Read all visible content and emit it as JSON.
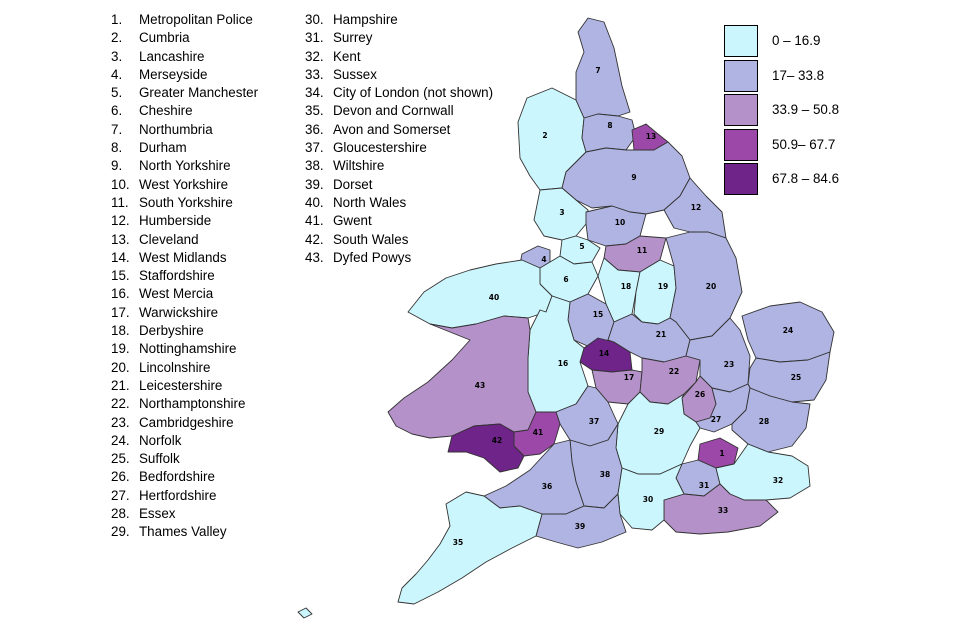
{
  "forces": [
    {
      "num": "1.",
      "name": "Metropolitan Police"
    },
    {
      "num": "2.",
      "name": "Cumbria"
    },
    {
      "num": "3.",
      "name": "Lancashire"
    },
    {
      "num": "4.",
      "name": "Merseyside"
    },
    {
      "num": "5.",
      "name": "Greater Manchester"
    },
    {
      "num": "6.",
      "name": "Cheshire"
    },
    {
      "num": "7.",
      "name": "Northumbria"
    },
    {
      "num": "8.",
      "name": "Durham"
    },
    {
      "num": "9.",
      "name": "North Yorkshire"
    },
    {
      "num": "10.",
      "name": "West Yorkshire"
    },
    {
      "num": "11.",
      "name": "South Yorkshire"
    },
    {
      "num": "12.",
      "name": "Humberside"
    },
    {
      "num": "13.",
      "name": "Cleveland"
    },
    {
      "num": "14.",
      "name": "West Midlands"
    },
    {
      "num": "15.",
      "name": "Staffordshire"
    },
    {
      "num": "16.",
      "name": "West Mercia"
    },
    {
      "num": "17.",
      "name": "Warwickshire"
    },
    {
      "num": "18.",
      "name": "Derbyshire"
    },
    {
      "num": "19.",
      "name": "Nottinghamshire"
    },
    {
      "num": "20.",
      "name": "Lincolnshire"
    },
    {
      "num": "21.",
      "name": "Leicestershire"
    },
    {
      "num": "22.",
      "name": "Northamptonshire"
    },
    {
      "num": "23.",
      "name": "Cambridgeshire"
    },
    {
      "num": "24.",
      "name": "Norfolk"
    },
    {
      "num": "25.",
      "name": "Suffolk"
    },
    {
      "num": "26.",
      "name": "Bedfordshire"
    },
    {
      "num": "27.",
      "name": "Hertfordshire"
    },
    {
      "num": "28.",
      "name": "Essex"
    },
    {
      "num": "29.",
      "name": "Thames Valley"
    },
    {
      "num": "30.",
      "name": "Hampshire"
    },
    {
      "num": "31.",
      "name": "Surrey"
    },
    {
      "num": "32.",
      "name": "Kent"
    },
    {
      "num": "33.",
      "name": "Sussex"
    },
    {
      "num": "34.",
      "name": "City of London (not shown)"
    },
    {
      "num": "35.",
      "name": "Devon and Cornwall"
    },
    {
      "num": "36.",
      "name": "Avon and Somerset"
    },
    {
      "num": "37.",
      "name": "Gloucestershire"
    },
    {
      "num": "38.",
      "name": "Wiltshire"
    },
    {
      "num": "39.",
      "name": "Dorset"
    },
    {
      "num": "40.",
      "name": "North Wales"
    },
    {
      "num": "41.",
      "name": "Gwent"
    },
    {
      "num": "42.",
      "name": "South Wales"
    },
    {
      "num": "43.",
      "name": "Dyfed Powys"
    }
  ],
  "legend": [
    {
      "label": "0 – 16.9",
      "color": "#ccf6fd"
    },
    {
      "label": "17– 33.8",
      "color": "#b0b4e2"
    },
    {
      "label": "33.9 – 50.8",
      "color": "#b491c9"
    },
    {
      "label": "50.9– 67.7",
      "color": "#9c48a8"
    },
    {
      "label": "67.8 – 84.6",
      "color": "#6e2488"
    }
  ],
  "areas": [
    {
      "id": "1",
      "class": 3
    },
    {
      "id": "2",
      "class": 0
    },
    {
      "id": "3",
      "class": 0
    },
    {
      "id": "4",
      "class": 1
    },
    {
      "id": "5",
      "class": 0
    },
    {
      "id": "6",
      "class": 0
    },
    {
      "id": "7",
      "class": 1
    },
    {
      "id": "8",
      "class": 1
    },
    {
      "id": "9",
      "class": 1
    },
    {
      "id": "10",
      "class": 1
    },
    {
      "id": "11",
      "class": 2
    },
    {
      "id": "12",
      "class": 1
    },
    {
      "id": "13",
      "class": 3
    },
    {
      "id": "14",
      "class": 4
    },
    {
      "id": "15",
      "class": 1
    },
    {
      "id": "16",
      "class": 0
    },
    {
      "id": "17",
      "class": 2
    },
    {
      "id": "18",
      "class": 0
    },
    {
      "id": "19",
      "class": 0
    },
    {
      "id": "20",
      "class": 1
    },
    {
      "id": "21",
      "class": 1
    },
    {
      "id": "22",
      "class": 2
    },
    {
      "id": "23",
      "class": 1
    },
    {
      "id": "24",
      "class": 1
    },
    {
      "id": "25",
      "class": 1
    },
    {
      "id": "26",
      "class": 2
    },
    {
      "id": "27",
      "class": 1
    },
    {
      "id": "28",
      "class": 1
    },
    {
      "id": "29",
      "class": 0
    },
    {
      "id": "30",
      "class": 0
    },
    {
      "id": "31",
      "class": 1
    },
    {
      "id": "32",
      "class": 0
    },
    {
      "id": "33",
      "class": 2
    },
    {
      "id": "35",
      "class": 0
    },
    {
      "id": "36",
      "class": 1
    },
    {
      "id": "37",
      "class": 1
    },
    {
      "id": "38",
      "class": 1
    },
    {
      "id": "39",
      "class": 1
    },
    {
      "id": "40",
      "class": 0
    },
    {
      "id": "41",
      "class": 3
    },
    {
      "id": "42",
      "class": 4
    },
    {
      "id": "43",
      "class": 2
    }
  ]
}
